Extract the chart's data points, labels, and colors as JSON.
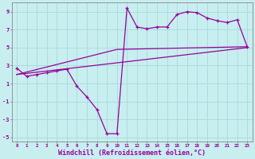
{
  "background_color": "#c8eef0",
  "grid_color": "#aadddd",
  "line_color": "#990099",
  "marker_color": "#990099",
  "xlim": [
    -0.5,
    23.5
  ],
  "ylim": [
    -5.5,
    10.0
  ],
  "xlabel": "Windchill (Refroidissement éolien,°C)",
  "xlabel_fontsize": 6.0,
  "xtick_positions": [
    0,
    1,
    2,
    3,
    4,
    5,
    6,
    7,
    8,
    9,
    10,
    11,
    12,
    13,
    14,
    15,
    16,
    17,
    18,
    19,
    20,
    21,
    22,
    23
  ],
  "xtick_labels": [
    "0",
    "1",
    "2",
    "3",
    "4",
    "5",
    "6",
    "7",
    "8",
    "9",
    "10",
    "11",
    "12",
    "13",
    "14",
    "15",
    "16",
    "17",
    "18",
    "19",
    "20",
    "21",
    "22",
    "23"
  ],
  "ytick_values": [
    -5,
    -3,
    -1,
    1,
    3,
    5,
    7,
    9
  ],
  "ytick_labels": [
    "-5",
    "-3",
    "-1",
    "1",
    "3",
    "5",
    "7",
    "9"
  ],
  "series1_x": [
    0,
    1,
    2,
    3,
    4,
    5,
    6,
    7,
    8,
    9,
    10,
    11,
    12,
    13,
    14,
    15,
    16,
    17,
    18,
    19,
    20,
    21,
    22,
    23
  ],
  "series1_y": [
    2.7,
    1.8,
    2.0,
    2.2,
    2.4,
    2.6,
    0.7,
    -0.5,
    -1.9,
    -4.6,
    -4.6,
    9.4,
    7.3,
    7.1,
    7.3,
    7.3,
    8.7,
    9.0,
    8.9,
    8.3,
    8.0,
    7.8,
    8.1,
    5.1
  ],
  "series2_x": [
    0,
    23
  ],
  "series2_y": [
    2.0,
    5.0
  ],
  "series3_x": [
    0,
    10,
    23
  ],
  "series3_y": [
    2.0,
    4.8,
    5.1
  ],
  "figsize": [
    3.2,
    2.0
  ],
  "dpi": 100
}
